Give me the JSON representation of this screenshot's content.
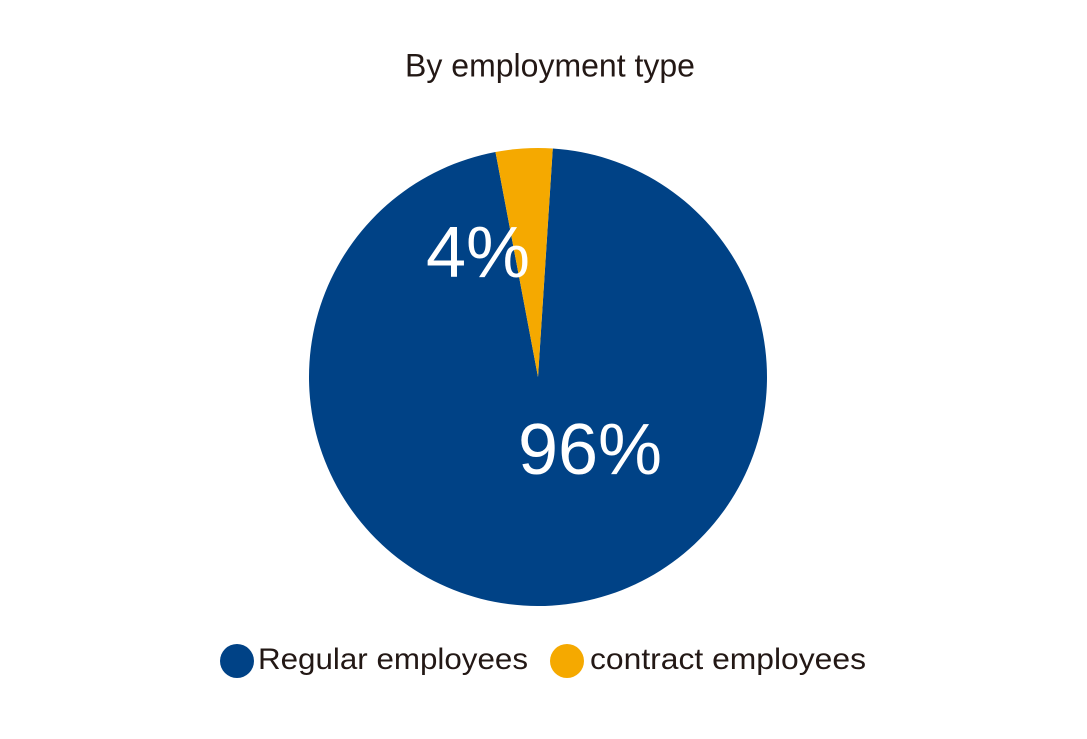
{
  "chart_data": {
    "type": "pie",
    "title": "By employment type",
    "categories": [
      "Regular employees",
      "contract employees"
    ],
    "values": [
      96,
      4
    ],
    "value_labels": [
      "96%",
      "4%"
    ],
    "colors": [
      "#004286",
      "#f5a900"
    ]
  }
}
